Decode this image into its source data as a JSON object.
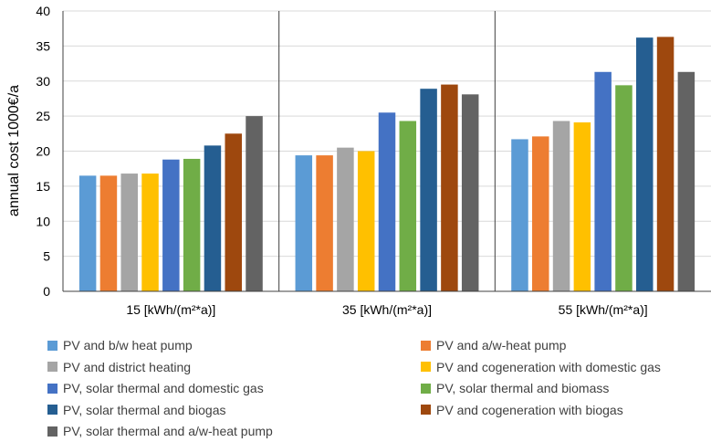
{
  "chart_data": {
    "type": "bar",
    "ylabel": "annual cost 1000€/a",
    "ylim": [
      0,
      40
    ],
    "yticks": [
      0,
      5,
      10,
      15,
      20,
      25,
      30,
      35,
      40
    ],
    "categories": [
      "15 [kWh/(m²*a)]",
      "35 [kWh/(m²*a)]",
      "55 [kWh/(m²*a)]"
    ],
    "grid": "horizontal",
    "legend_position": "bottom",
    "series": [
      {
        "name": "PV and b/w heat pump",
        "color": "#5b9bd5",
        "values": [
          16.5,
          19.4,
          21.7
        ]
      },
      {
        "name": "PV and a/w-heat pump",
        "color": "#ed7d31",
        "values": [
          16.5,
          19.4,
          22.1
        ]
      },
      {
        "name": "PV and district heating",
        "color": "#a5a5a5",
        "values": [
          16.8,
          20.5,
          24.3
        ]
      },
      {
        "name": "PV and cogeneration with domestic gas",
        "color": "#ffc000",
        "values": [
          16.8,
          20.0,
          24.1
        ]
      },
      {
        "name": "PV, solar thermal and domestic gas",
        "color": "#4472c4",
        "values": [
          18.8,
          25.5,
          31.3
        ]
      },
      {
        "name": "PV, solar thermal and biomass",
        "color": "#70ad47",
        "values": [
          18.9,
          24.3,
          29.4
        ]
      },
      {
        "name": "PV, solar thermal and biogas",
        "color": "#255e91",
        "values": [
          20.8,
          28.9,
          36.2
        ]
      },
      {
        "name": "PV and cogeneration with biogas",
        "color": "#9e480e",
        "values": [
          22.5,
          29.5,
          36.3
        ]
      },
      {
        "name": "PV, solar thermal and a/w-heat pump",
        "color": "#636363",
        "values": [
          25.0,
          28.1,
          31.3
        ]
      }
    ]
  }
}
